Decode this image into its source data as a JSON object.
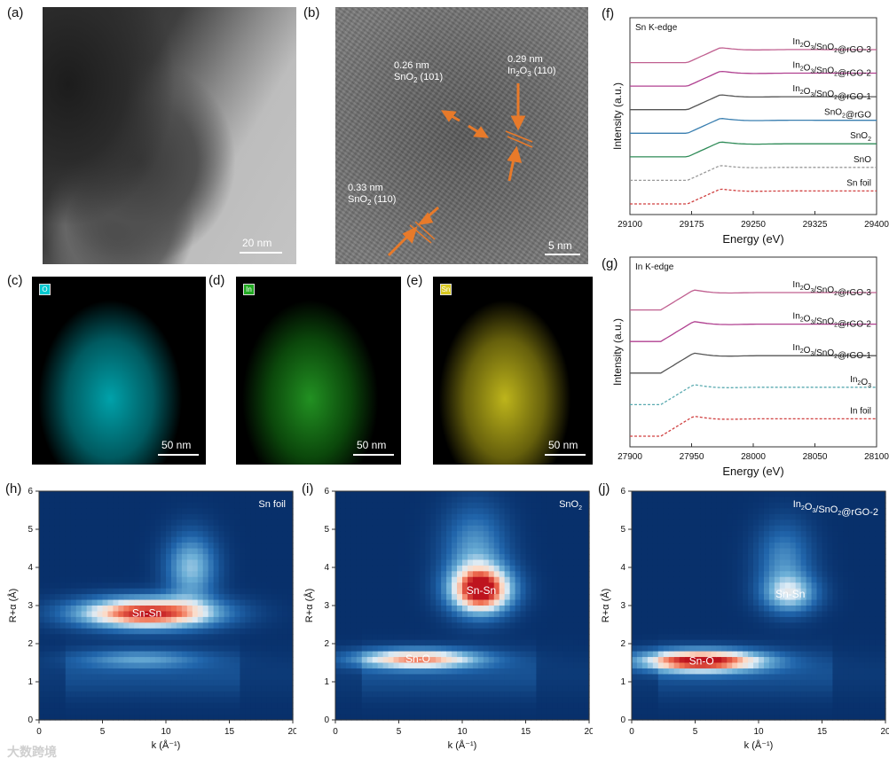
{
  "panels": {
    "a": {
      "letter": "(a)",
      "scale": "20 nm"
    },
    "b": {
      "letter": "(b)",
      "scale": "5 nm",
      "annotations": [
        {
          "line1": "0.26 nm",
          "line2": "SnO",
          "sub": "2",
          "line3": " (101)"
        },
        {
          "line1": "0.29 nm",
          "line2": "In",
          "sub": "2",
          "line2b": "O",
          "sub2": "3",
          "line3": " (110)"
        },
        {
          "line1": "0.33 nm",
          "line2": "SnO",
          "sub": "2",
          "line3": " (110)"
        }
      ]
    },
    "c": {
      "letter": "(c)",
      "scale": "50 nm",
      "chip": "O",
      "chip_color": "#00c8d0"
    },
    "d": {
      "letter": "(d)",
      "scale": "50 nm",
      "chip": "In",
      "chip_color": "#22aa22"
    },
    "e": {
      "letter": "(e)",
      "scale": "50 nm",
      "chip": "Sn",
      "chip_color": "#d8c820"
    }
  },
  "chart_data": [
    {
      "panel": "(f)",
      "type": "line",
      "title": "Sn K-edge",
      "xlabel": "Energy (eV)",
      "ylabel": "Intensity (a.u.)",
      "xlim": [
        29100,
        29400
      ],
      "xticks": [
        "29100",
        "29175",
        "29250",
        "29325",
        "29400"
      ],
      "edge": 29200,
      "series": [
        {
          "name": "Sn foil",
          "color": "#d04040",
          "dashed": true
        },
        {
          "name": "SnO",
          "color": "#999999",
          "dashed": true
        },
        {
          "name": "SnO2",
          "color": "#2e8b57",
          "dashed": false
        },
        {
          "name": "SnO2@rGO",
          "color": "#3a7fb0",
          "dashed": false
        },
        {
          "name": "In2O3/SnO2@rGO-1",
          "color": "#555555",
          "dashed": false
        },
        {
          "name": "In2O3/SnO2@rGO-2",
          "color": "#b04090",
          "dashed": false
        },
        {
          "name": "In2O3/SnO2@rGO-3",
          "color": "#c06090",
          "dashed": false
        }
      ]
    },
    {
      "panel": "(g)",
      "type": "line",
      "title": "In K-edge",
      "xlabel": "Energy (eV)",
      "ylabel": "Intensity (a.u.)",
      "xlim": [
        27900,
        28100
      ],
      "xticks": [
        "27900",
        "27950",
        "28000",
        "28050",
        "28100"
      ],
      "edge": 27945,
      "series": [
        {
          "name": "In foil",
          "color": "#d04040",
          "dashed": true
        },
        {
          "name": "In2O3",
          "color": "#5aaab0",
          "dashed": true
        },
        {
          "name": "In2O3/SnO2@rGO-1",
          "color": "#555555",
          "dashed": false
        },
        {
          "name": "In2O3/SnO2@rGO-2",
          "color": "#b04090",
          "dashed": false
        },
        {
          "name": "In2O3/SnO2@rGO-3",
          "color": "#c06090",
          "dashed": false
        }
      ]
    },
    {
      "panel": "(h)",
      "type": "heatmap",
      "label": "Sn foil",
      "xlabel": "k (Å⁻¹)",
      "ylabel": "R+α (Å)",
      "xlim": [
        0,
        20
      ],
      "ylim": [
        0,
        6
      ],
      "xticks": [
        "0",
        "5",
        "10",
        "15",
        "20"
      ],
      "yticks": [
        "0",
        "1",
        "2",
        "3",
        "4",
        "5",
        "6"
      ],
      "peaks": [
        {
          "label": "Sn-Sn",
          "k": 8.5,
          "r": 2.8,
          "ka": 5.5,
          "ra": 0.4,
          "amp": 1.0
        },
        {
          "label": "",
          "k": 12,
          "r": 4.0,
          "ka": 2,
          "ra": 0.9,
          "amp": 0.45
        },
        {
          "label": "",
          "k": 8,
          "r": 1.6,
          "ka": 5,
          "ra": 0.25,
          "amp": 0.3
        }
      ],
      "peak_labels": [
        "Sn-Sn"
      ]
    },
    {
      "panel": "(i)",
      "type": "heatmap",
      "label": "SnO2",
      "xlabel": "k (Å⁻¹)",
      "ylabel": "R+α (Å)",
      "xlim": [
        0,
        20
      ],
      "ylim": [
        0,
        6
      ],
      "xticks": [
        "0",
        "5",
        "10",
        "15",
        "20"
      ],
      "yticks": [
        "0",
        "1",
        "2",
        "3",
        "4",
        "5",
        "6"
      ],
      "peaks": [
        {
          "label": "Sn-Sn",
          "k": 11.5,
          "r": 3.4,
          "ka": 2.4,
          "ra": 0.6,
          "amp": 1.0
        },
        {
          "label": "Sn-O",
          "k": 6.5,
          "r": 1.6,
          "ka": 5,
          "ra": 0.25,
          "amp": 0.75
        },
        {
          "label": "",
          "k": 11,
          "r": 4.4,
          "ka": 2.5,
          "ra": 1.2,
          "amp": 0.35
        }
      ],
      "peak_labels": [
        "Sn-Sn",
        "Sn-O"
      ]
    },
    {
      "panel": "(j)",
      "type": "heatmap",
      "label": "In2O3/SnO2@rGO-2",
      "xlabel": "k (Å⁻¹)",
      "ylabel": "R+α (Å)",
      "xlim": [
        0,
        20
      ],
      "ylim": [
        0,
        6
      ],
      "xticks": [
        "0",
        "5",
        "10",
        "15",
        "20"
      ],
      "yticks": [
        "0",
        "1",
        "2",
        "3",
        "4",
        "5",
        "6"
      ],
      "peaks": [
        {
          "label": "Sn-O",
          "k": 5.5,
          "r": 1.55,
          "ka": 5,
          "ra": 0.28,
          "amp": 1.0
        },
        {
          "label": "Sn-Sn",
          "k": 12.5,
          "r": 3.3,
          "ka": 2.2,
          "ra": 0.5,
          "amp": 0.45
        },
        {
          "label": "",
          "k": 12,
          "r": 4.2,
          "ka": 2.2,
          "ra": 1.0,
          "amp": 0.3
        }
      ],
      "peak_labels": [
        "Sn-O",
        "Sn-Sn"
      ]
    }
  ],
  "watermark": "大数跨境"
}
